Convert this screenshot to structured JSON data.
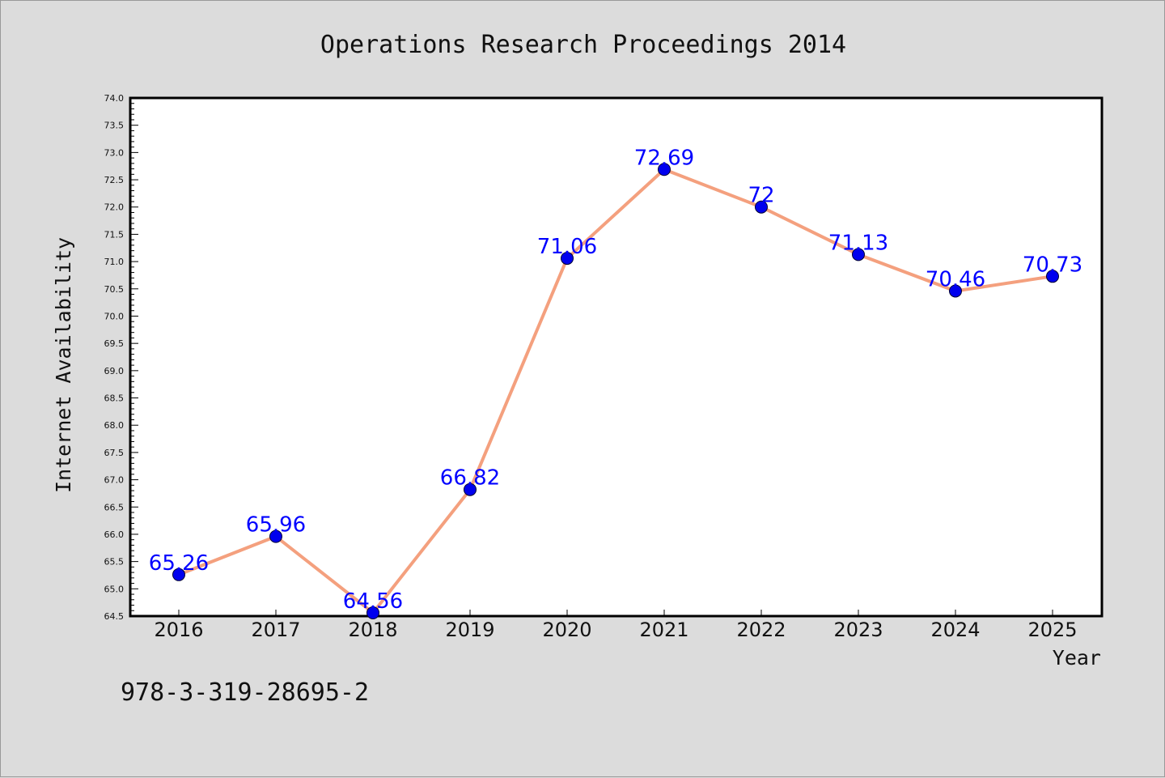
{
  "chart_data": {
    "type": "line",
    "title": "Operations Research Proceedings 2014",
    "xlabel": "Year",
    "ylabel": "Internet Availability",
    "categories": [
      "2016",
      "2017",
      "2018",
      "2019",
      "2020",
      "2021",
      "2022",
      "2023",
      "2024",
      "2025"
    ],
    "series": [
      {
        "values": [
          65.26,
          65.96,
          64.56,
          66.82,
          71.06,
          72.69,
          72,
          71.13,
          70.46,
          70.73
        ],
        "labels": [
          "65.26",
          "65.96",
          "64.56",
          "66.82",
          "71.06",
          "72.69",
          "72",
          "71.13",
          "70.46",
          "70.73"
        ],
        "line_color": "#f4a07e",
        "marker_color": "#0000ee"
      }
    ],
    "ylim": [
      64.5,
      74.0
    ],
    "yticks": [
      "64.5",
      "65.0",
      "65.5",
      "66.0",
      "66.5",
      "67.0",
      "67.5",
      "68.0",
      "68.5",
      "69.0",
      "69.5",
      "70.0",
      "70.5",
      "71.0",
      "71.5",
      "72.0",
      "72.5",
      "73.0",
      "73.5",
      "74.0"
    ],
    "grid": false,
    "label_color": "#0000ff"
  },
  "footer": {
    "isbn": "978-3-319-28695-2"
  }
}
